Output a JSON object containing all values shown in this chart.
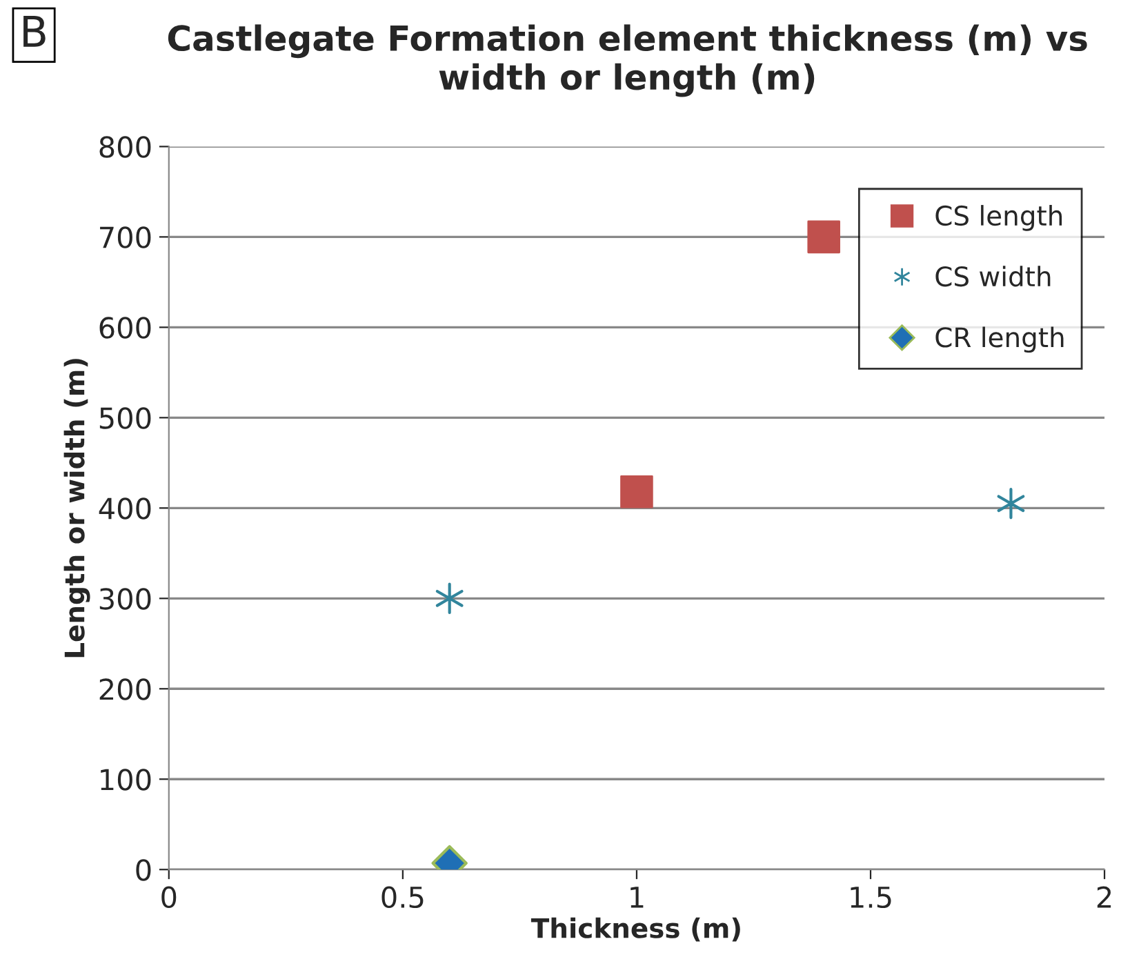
{
  "chart_data": {
    "type": "scatter",
    "title": "Castlegate Formation element thickness (m) vs width or length (m)",
    "xlabel": "Thickness (m)",
    "ylabel": "Length or width (m)",
    "annotations": [
      "B"
    ],
    "series": [
      {
        "name": "CS length",
        "color": "#c0504d",
        "marker": "square",
        "x": [
          1.4,
          1
        ],
        "values": [
          700,
          418
        ]
      },
      {
        "name": "CS width",
        "color": "#31859c",
        "marker": "cross",
        "x": [
          0.6,
          1.8
        ],
        "values": [
          300,
          405
        ]
      },
      {
        "name": "CR length",
        "color": "#1f6fb5",
        "marker": "diamond",
        "x": [
          0.6
        ],
        "values": [
          7
        ]
      }
    ],
    "xlim": [
      0,
      2
    ],
    "xticks": [
      0,
      0.5,
      1,
      1.5,
      2
    ],
    "ylim": [
      0,
      800
    ],
    "yticks": [
      0,
      100,
      200,
      300,
      400,
      500,
      600,
      700,
      800
    ],
    "grid": "y",
    "legend": "top right"
  }
}
